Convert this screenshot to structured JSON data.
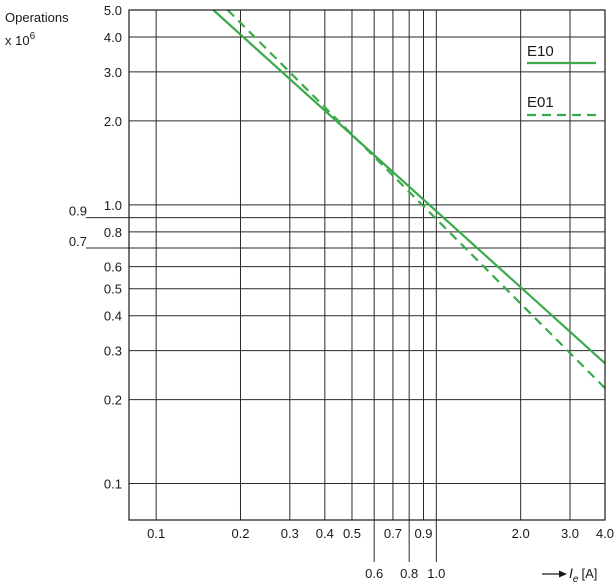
{
  "chart_data": {
    "type": "line",
    "ylabel": "Operations",
    "ylabel_multiplier_base": "x 10",
    "ylabel_multiplier_exp": "6",
    "xlabel_symbol": "I",
    "xlabel_subscript": "e",
    "xlabel_unit": "[A]",
    "x_scale": "log",
    "y_scale": "log",
    "xlim": [
      0.08,
      4.0
    ],
    "ylim": [
      0.074,
      5.0
    ],
    "grid": true,
    "legend_position": "top-right",
    "x_ticks": [
      {
        "value": 0.1,
        "label": "0.1",
        "row": "upper"
      },
      {
        "value": 0.2,
        "label": "0.2",
        "row": "upper"
      },
      {
        "value": 0.3,
        "label": "0.3",
        "row": "upper"
      },
      {
        "value": 0.4,
        "label": "0.4",
        "row": "upper"
      },
      {
        "value": 0.5,
        "label": "0.5",
        "row": "upper"
      },
      {
        "value": 0.6,
        "label": "0.6",
        "row": "lower"
      },
      {
        "value": 0.7,
        "label": "0.7",
        "row": "upper"
      },
      {
        "value": 0.8,
        "label": "0.8",
        "row": "lower"
      },
      {
        "value": 0.9,
        "label": "0.9",
        "row": "upper"
      },
      {
        "value": 1.0,
        "label": "1.0",
        "row": "lower"
      },
      {
        "value": 2.0,
        "label": "2.0",
        "row": "upper"
      },
      {
        "value": 3.0,
        "label": "3.0",
        "row": "upper"
      },
      {
        "value": 4.0,
        "label": "4.0",
        "row": "upper"
      }
    ],
    "y_ticks": [
      {
        "value": 5.0,
        "label": "5.0",
        "side": "inner"
      },
      {
        "value": 4.0,
        "label": "4.0",
        "side": "inner"
      },
      {
        "value": 3.0,
        "label": "3.0",
        "side": "inner"
      },
      {
        "value": 2.0,
        "label": "2.0",
        "side": "inner"
      },
      {
        "value": 1.0,
        "label": "1.0",
        "side": "inner"
      },
      {
        "value": 0.9,
        "label": "0.9",
        "side": "outer"
      },
      {
        "value": 0.8,
        "label": "0.8",
        "side": "inner"
      },
      {
        "value": 0.7,
        "label": "0.7",
        "side": "outer"
      },
      {
        "value": 0.6,
        "label": "0.6",
        "side": "inner"
      },
      {
        "value": 0.5,
        "label": "0.5",
        "side": "inner"
      },
      {
        "value": 0.4,
        "label": "0.4",
        "side": "inner"
      },
      {
        "value": 0.3,
        "label": "0.3",
        "side": "inner"
      },
      {
        "value": 0.2,
        "label": "0.2",
        "side": "inner"
      },
      {
        "value": 0.1,
        "label": "0.1",
        "side": "inner"
      }
    ],
    "series": [
      {
        "name": "E10",
        "style": "solid",
        "color": "#3aaa4a",
        "points": [
          [
            0.16,
            5.0
          ],
          [
            4.0,
            0.27
          ]
        ]
      },
      {
        "name": "E01",
        "style": "dashed",
        "color": "#3aaa4a",
        "points": [
          [
            0.18,
            5.0
          ],
          [
            4.0,
            0.22
          ]
        ]
      }
    ]
  }
}
